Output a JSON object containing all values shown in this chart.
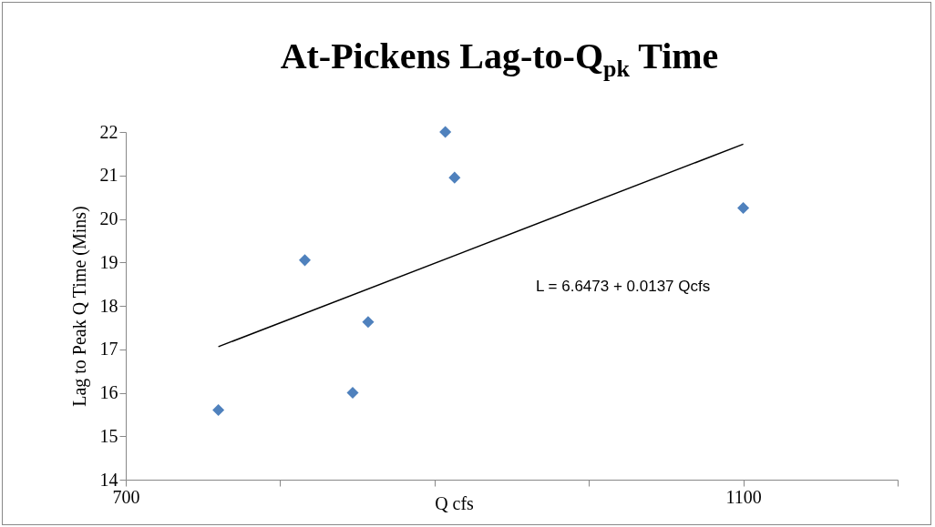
{
  "chart_data": {
    "type": "scatter",
    "title": "At-Pickens Lag-to-Q$_{pk}$ Time",
    "xlabel": "Q cfs",
    "ylabel": "Lag to Peak Q Time (Mins)",
    "xlim": [
      700,
      1200
    ],
    "xticks": [
      700,
      {
        "value": 800,
        "label": null
      },
      {
        "value": 900,
        "label": null
      },
      {
        "value": 1000,
        "label": null
      },
      1100,
      {
        "value": 1200,
        "label": null
      }
    ],
    "ylim": [
      14,
      22
    ],
    "yticks": [
      14,
      15,
      16,
      17,
      18,
      19,
      20,
      21,
      22
    ],
    "annotations": [
      "L =  6.6473 + 0.0137 Qcfs"
    ],
    "series": [
      {
        "marker": "diamond",
        "color": "#4f81bd",
        "x": [
          760,
          816,
          847,
          857,
          907,
          913,
          1100
        ],
        "values": [
          15.6,
          19.05,
          16.0,
          17.63,
          22.0,
          20.95,
          20.25
        ]
      },
      {
        "type": "line",
        "color": "#000000",
        "x": [
          760,
          1100
        ],
        "values": [
          17.06,
          21.72
        ]
      }
    ]
  }
}
